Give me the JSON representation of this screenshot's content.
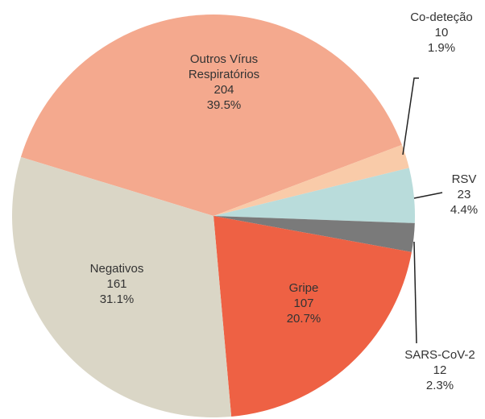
{
  "chart_data": {
    "type": "pie",
    "categories": [
      "Outros Vírus Respiratórios",
      "Co-deteção",
      "RSV",
      "SARS-CoV-2",
      "Gripe",
      "Negativos"
    ],
    "counts": [
      204,
      10,
      23,
      12,
      107,
      161
    ],
    "values": [
      39.5,
      1.9,
      4.4,
      2.3,
      20.7,
      31.1
    ],
    "value_labels": [
      "39.5%",
      "1.9%",
      "4.4%",
      "2.3%",
      "20.7%",
      "31.1%"
    ],
    "colors": [
      "#f4a98e",
      "#f9cba9",
      "#b9dcdb",
      "#7a7a7a",
      "#ee6144",
      "#dad6c6"
    ]
  }
}
